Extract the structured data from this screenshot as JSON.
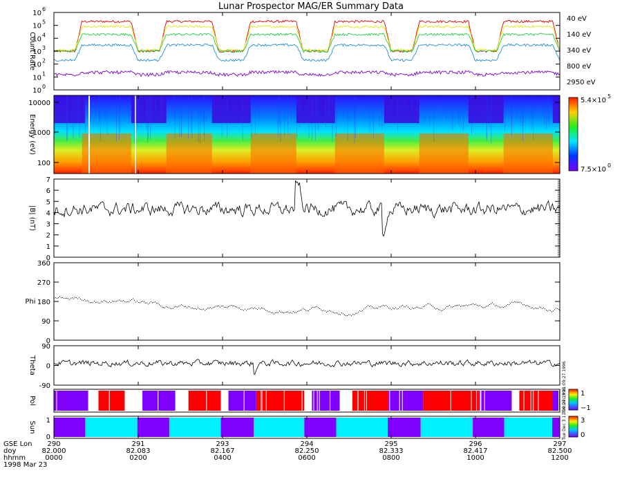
{
  "title": "Lunar Prospector MAG/ER Summary Data",
  "panels": {
    "count_rate": {
      "ylabel": "Count Rate",
      "yticks": [
        "10",
        "10",
        "10",
        "10",
        "10",
        "10",
        "10"
      ],
      "yexp": [
        "0",
        "1",
        "2",
        "3",
        "4",
        "5",
        "6"
      ],
      "legend": [
        {
          "label": "40 eV",
          "color": "#e00000"
        },
        {
          "label": "140 eV",
          "color": "#e6e600"
        },
        {
          "label": "340 eV",
          "color": "#22cc44"
        },
        {
          "label": "800 eV",
          "color": "#1f8fd6"
        },
        {
          "label": "2950 eV",
          "color": "#7a00c8"
        }
      ]
    },
    "energy": {
      "ylabel": "Energy (eV)",
      "yticks": [
        "100",
        "1000",
        "10000"
      ],
      "colorbar_max": "5.4×10",
      "colorbar_max_exp": "5",
      "colorbar_min": "7.5×10",
      "colorbar_min_exp": "0"
    },
    "bmag": {
      "ylabel": "|B| (nT)",
      "yticks": [
        "0",
        "1",
        "2",
        "3",
        "4",
        "5",
        "6",
        "7"
      ]
    },
    "phi": {
      "ylabel": "Phi",
      "yticks": [
        "0",
        "90",
        "180",
        "270",
        "360"
      ]
    },
    "theta": {
      "ylabel": "Theta",
      "yticks": [
        "-90",
        "0",
        "90"
      ]
    },
    "pol": {
      "ylabel": "Pol",
      "cbar_ticks": [
        "1",
        "−1"
      ],
      "side_text": "Tue Dec 3 11:09:27 1996"
    },
    "sun": {
      "ylabel": "Sun",
      "yticks": [
        "0",
        "1"
      ],
      "cbar_ticks": [
        "3",
        "0"
      ],
      "side_text": "Tue Dec 3 11:09:27 1996"
    }
  },
  "xaxis": {
    "row_labels": [
      "GSE Lon",
      "doy",
      "hhmm",
      "1998 Mar 23"
    ],
    "ticks": [
      {
        "lon": "290",
        "doy": "82.000",
        "hhmm": "0000"
      },
      {
        "lon": "291",
        "doy": "82.083",
        "hhmm": "0200"
      },
      {
        "lon": "293",
        "doy": "82.167",
        "hhmm": "0400"
      },
      {
        "lon": "294",
        "doy": "82.250",
        "hhmm": "0600"
      },
      {
        "lon": "295",
        "doy": "82.333",
        "hhmm": "0800"
      },
      {
        "lon": "296",
        "doy": "82.417",
        "hhmm": "1000"
      },
      {
        "lon": "297",
        "doy": "82.500",
        "hhmm": "1200"
      }
    ]
  },
  "chart_data": [
    {
      "type": "line",
      "title": "Lunar Prospector MAG/ER Summary Data",
      "ylabel": "Count Rate",
      "yscale": "log",
      "ylim": [
        1,
        1000000
      ],
      "x_label_hhmm": [
        "0000",
        "0200",
        "0400",
        "0600",
        "0800",
        "1000",
        "1200"
      ],
      "series": [
        {
          "name": "40 eV",
          "color": "#e00000",
          "high": 200000,
          "low": 1000
        },
        {
          "name": "140 eV",
          "color": "#e6e600",
          "high": 80000,
          "low": 1200
        },
        {
          "name": "340 eV",
          "color": "#22cc44",
          "high": 20000,
          "low": 1000
        },
        {
          "name": "800 eV",
          "color": "#1f8fd6",
          "high": 3000,
          "low": 200
        },
        {
          "name": "2950 eV",
          "color": "#7a00c8",
          "high": 30,
          "low": 15
        }
      ],
      "plateaus_hhmm": [
        [
          "0040",
          "0150"
        ],
        [
          "0240",
          "0345"
        ],
        [
          "0440",
          "0545"
        ],
        [
          "0640",
          "0750"
        ],
        [
          "0840",
          "0950"
        ],
        [
          "1040",
          "1150"
        ]
      ]
    },
    {
      "type": "heatmap",
      "ylabel": "Energy (eV)",
      "ylim": [
        40,
        15000
      ],
      "color_range": [
        7.5,
        540000
      ]
    },
    {
      "type": "line",
      "ylabel": "|B| (nT)",
      "ylim": [
        0,
        7
      ],
      "typical": 4.3
    },
    {
      "type": "scatter",
      "ylabel": "Phi",
      "ylim": [
        0,
        360
      ],
      "typical": 160
    },
    {
      "type": "line",
      "ylabel": "Theta",
      "ylim": [
        -90,
        90
      ],
      "typical": 10
    },
    {
      "type": "heatmap",
      "ylabel": "Pol",
      "values": [
        -1,
        1
      ],
      "segments": [
        {
          "x0": 0.0,
          "x1": 0.068,
          "value": "purple"
        },
        {
          "x0": 0.068,
          "x1": 0.088,
          "value": "white"
        },
        {
          "x0": 0.088,
          "x1": 0.14,
          "value": "red"
        },
        {
          "x0": 0.14,
          "x1": 0.175,
          "value": "white"
        },
        {
          "x0": 0.175,
          "x1": 0.24,
          "value": "purple"
        },
        {
          "x0": 0.24,
          "x1": 0.265,
          "value": "white"
        },
        {
          "x0": 0.265,
          "x1": 0.33,
          "value": "red"
        },
        {
          "x0": 0.33,
          "x1": 0.345,
          "value": "white"
        },
        {
          "x0": 0.345,
          "x1": 0.4,
          "value": "purple"
        },
        {
          "x0": 0.4,
          "x1": 0.495,
          "value": "red"
        },
        {
          "x0": 0.495,
          "x1": 0.51,
          "value": "white"
        },
        {
          "x0": 0.51,
          "x1": 0.565,
          "value": "purple"
        },
        {
          "x0": 0.565,
          "x1": 0.59,
          "value": "white"
        },
        {
          "x0": 0.59,
          "x1": 0.66,
          "value": "red"
        },
        {
          "x0": 0.66,
          "x1": 0.73,
          "value": "purple"
        },
        {
          "x0": 0.73,
          "x1": 0.84,
          "value": "red"
        },
        {
          "x0": 0.84,
          "x1": 0.905,
          "value": "purple"
        },
        {
          "x0": 0.905,
          "x1": 0.92,
          "value": "white"
        },
        {
          "x0": 0.92,
          "x1": 0.985,
          "value": "red"
        },
        {
          "x0": 0.985,
          "x1": 1.0,
          "value": "purple"
        }
      ]
    },
    {
      "type": "heatmap",
      "ylabel": "Sun",
      "values": [
        0,
        3
      ],
      "segments": [
        {
          "x0": 0.0,
          "x1": 0.062,
          "value": "purple"
        },
        {
          "x0": 0.062,
          "x1": 0.165,
          "value": "cyan"
        },
        {
          "x0": 0.165,
          "x1": 0.228,
          "value": "purple"
        },
        {
          "x0": 0.228,
          "x1": 0.33,
          "value": "cyan"
        },
        {
          "x0": 0.33,
          "x1": 0.395,
          "value": "purple"
        },
        {
          "x0": 0.395,
          "x1": 0.495,
          "value": "cyan"
        },
        {
          "x0": 0.495,
          "x1": 0.558,
          "value": "purple"
        },
        {
          "x0": 0.558,
          "x1": 0.66,
          "value": "cyan"
        },
        {
          "x0": 0.66,
          "x1": 0.725,
          "value": "purple"
        },
        {
          "x0": 0.725,
          "x1": 0.828,
          "value": "cyan"
        },
        {
          "x0": 0.828,
          "x1": 0.89,
          "value": "purple"
        },
        {
          "x0": 0.89,
          "x1": 0.985,
          "value": "cyan"
        },
        {
          "x0": 0.985,
          "x1": 1.0,
          "value": "purple"
        }
      ]
    }
  ]
}
